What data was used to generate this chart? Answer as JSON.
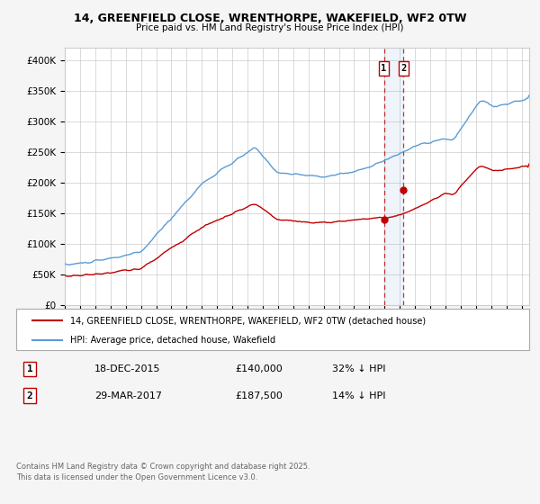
{
  "title1": "14, GREENFIELD CLOSE, WRENTHORPE, WAKEFIELD, WF2 0TW",
  "title2": "Price paid vs. HM Land Registry's House Price Index (HPI)",
  "ylabel_ticks": [
    "£0",
    "£50K",
    "£100K",
    "£150K",
    "£200K",
    "£250K",
    "£300K",
    "£350K",
    "£400K"
  ],
  "ytick_vals": [
    0,
    50000,
    100000,
    150000,
    200000,
    250000,
    300000,
    350000,
    400000
  ],
  "ylim": [
    0,
    420000
  ],
  "hpi_color": "#5b9bd5",
  "property_color": "#c00000",
  "sale1_date": "18-DEC-2015",
  "sale1_price": 140000,
  "sale1_label": "32% ↓ HPI",
  "sale2_date": "29-MAR-2017",
  "sale2_price": 187500,
  "sale2_label": "14% ↓ HPI",
  "legend_property": "14, GREENFIELD CLOSE, WRENTHORPE, WAKEFIELD, WF2 0TW (detached house)",
  "legend_hpi": "HPI: Average price, detached house, Wakefield",
  "footer": "Contains HM Land Registry data © Crown copyright and database right 2025.\nThis data is licensed under the Open Government Licence v3.0.",
  "box1_label": "1",
  "box2_label": "2",
  "sale1_x": 2015.96,
  "sale2_x": 2017.24,
  "background_color": "#f5f5f5",
  "plot_bg": "#ffffff"
}
